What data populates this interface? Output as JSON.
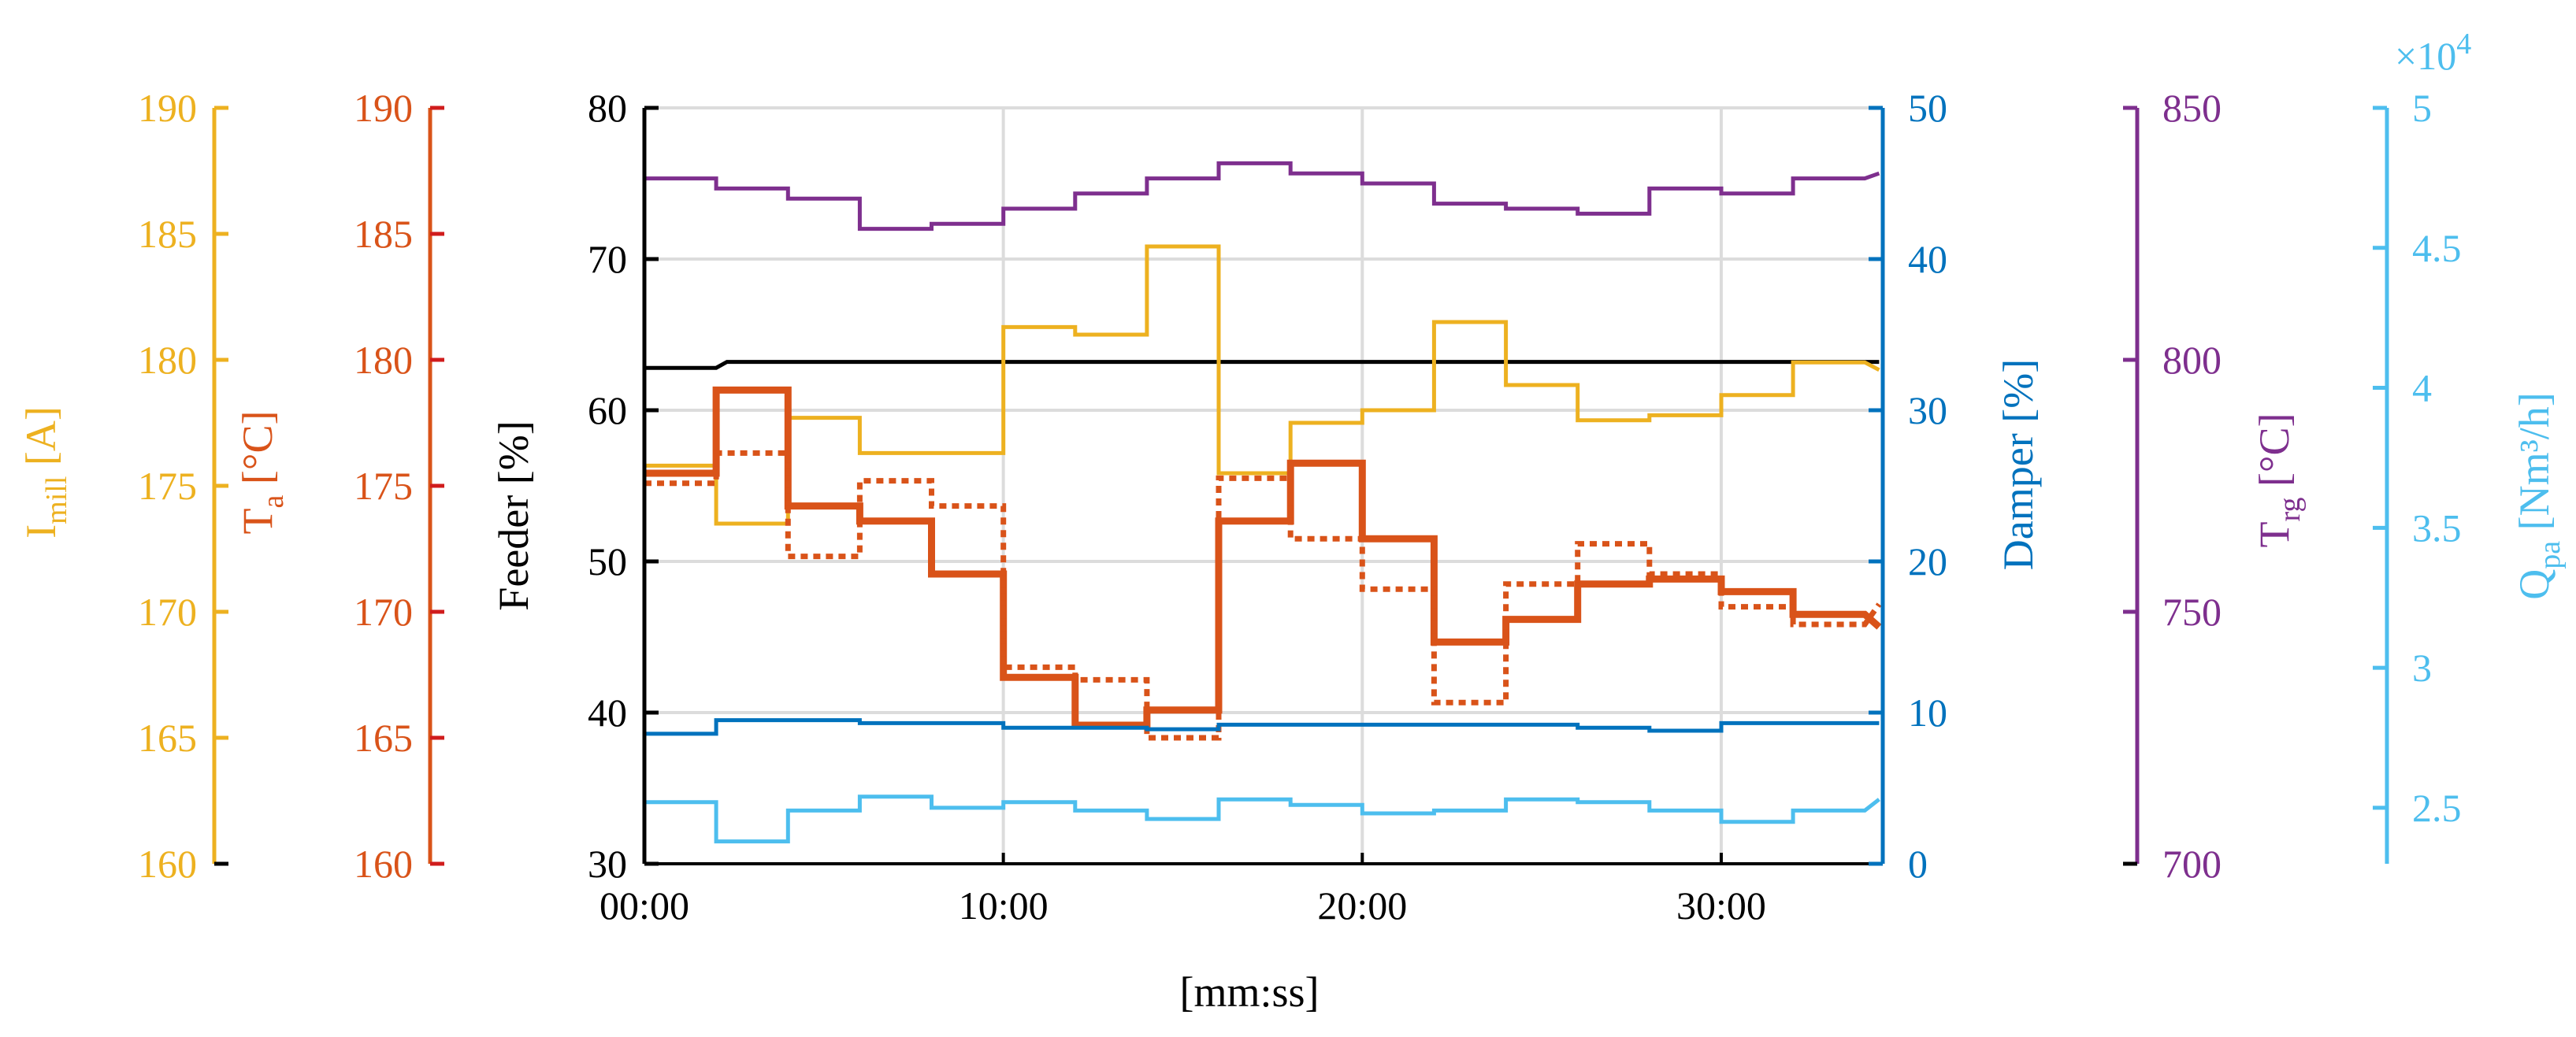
{
  "chart_data": {
    "type": "line",
    "xlabel": "[mm:ss]",
    "x_ticks": [
      "00:00",
      "10:00",
      "20:00",
      "30:00"
    ],
    "x_tick_minutes": [
      0,
      10,
      20,
      30
    ],
    "xlim_minutes": [
      0,
      34.5
    ],
    "grid": true,
    "axes": {
      "feeder": {
        "label": "Feeder [%]",
        "ylim": [
          30,
          80
        ],
        "ticks": [
          30,
          40,
          50,
          60,
          70,
          80
        ],
        "color": "#000000"
      },
      "damper": {
        "label": "Damper [%]",
        "ylim": [
          0,
          50
        ],
        "ticks": [
          0,
          10,
          20,
          30,
          40,
          50
        ],
        "color": "#0072BD"
      },
      "imill": {
        "label_main": "I",
        "label_sub": "mill",
        "label_unit": " [A]",
        "ylim": [
          160,
          190
        ],
        "ticks": [
          160,
          165,
          170,
          175,
          180,
          185,
          190
        ],
        "color": "#EDB120"
      },
      "ta": {
        "label_main": "T",
        "label_sub": "a",
        "label_unit": " [°C]",
        "ylim": [
          160,
          190
        ],
        "ticks": [
          160,
          165,
          170,
          175,
          180,
          185,
          190
        ],
        "color": "#D95319",
        "tick_color": "#D01C1C"
      },
      "trg": {
        "label_main": "T",
        "label_sub": "rg",
        "label_unit": " [°C]",
        "ylim": [
          700,
          850
        ],
        "ticks": [
          700,
          750,
          800,
          850
        ],
        "color": "#7E2F8E"
      },
      "qpa": {
        "label_main": "Q",
        "label_sub": "pa",
        "label_unit": " [Nm³/h]",
        "ylim": [
          2.3,
          5
        ],
        "ticks": [
          2.5,
          3,
          3.5,
          4,
          4.5,
          5
        ],
        "exponent_prefix": "×10",
        "exponent_power": "4",
        "color": "#4DBEEE"
      }
    },
    "series": [
      {
        "axis": "trg",
        "color": "#7E2F8E",
        "style": "solid",
        "width": 5,
        "points": [
          [
            0,
            836
          ],
          [
            2,
            836
          ],
          [
            2,
            834
          ],
          [
            4,
            834
          ],
          [
            4,
            832
          ],
          [
            6,
            832
          ],
          [
            6,
            826
          ],
          [
            8,
            826
          ],
          [
            8,
            827
          ],
          [
            10,
            827
          ],
          [
            10,
            830
          ],
          [
            12,
            830
          ],
          [
            12,
            833
          ],
          [
            14,
            833
          ],
          [
            14,
            836
          ],
          [
            16,
            836
          ],
          [
            16,
            839
          ],
          [
            18,
            839
          ],
          [
            18,
            837
          ],
          [
            20,
            837
          ],
          [
            20,
            835
          ],
          [
            22,
            835
          ],
          [
            22,
            831
          ],
          [
            24,
            831
          ],
          [
            24,
            830
          ],
          [
            26,
            830
          ],
          [
            26,
            829
          ],
          [
            28,
            829
          ],
          [
            28,
            834
          ],
          [
            30,
            834
          ],
          [
            30,
            833
          ],
          [
            32,
            833
          ],
          [
            32,
            836
          ],
          [
            34,
            836
          ],
          [
            34.4,
            837
          ]
        ]
      },
      {
        "axis": "feeder",
        "color": "#000000",
        "style": "solid",
        "width": 5,
        "points": [
          [
            0,
            62.8
          ],
          [
            2,
            62.8
          ],
          [
            2.3,
            63.2
          ],
          [
            34.4,
            63.2
          ]
        ]
      },
      {
        "axis": "imill",
        "color": "#EDB120",
        "style": "solid",
        "width": 5,
        "points": [
          [
            0,
            175.8
          ],
          [
            2,
            175.8
          ],
          [
            2,
            173.5
          ],
          [
            4,
            173.5
          ],
          [
            4,
            177.7
          ],
          [
            6,
            177.7
          ],
          [
            6,
            176.3
          ],
          [
            10,
            176.3
          ],
          [
            10,
            181.3
          ],
          [
            12,
            181.3
          ],
          [
            12,
            181
          ],
          [
            14,
            181
          ],
          [
            14,
            184.5
          ],
          [
            16,
            184.5
          ],
          [
            16,
            175.5
          ],
          [
            18,
            175.5
          ],
          [
            18,
            177.5
          ],
          [
            20,
            177.5
          ],
          [
            20,
            178
          ],
          [
            22,
            178
          ],
          [
            22,
            181.5
          ],
          [
            24,
            181.5
          ],
          [
            24,
            179
          ],
          [
            26,
            179
          ],
          [
            26,
            177.6
          ],
          [
            28,
            177.6
          ],
          [
            28,
            177.8
          ],
          [
            30,
            177.8
          ],
          [
            30,
            178.6
          ],
          [
            32,
            178.6
          ],
          [
            32,
            179.9
          ],
          [
            34,
            179.9
          ],
          [
            34.4,
            179.6
          ]
        ]
      },
      {
        "axis": "ta",
        "color": "#D95319",
        "style": "solid",
        "width": 9,
        "points": [
          [
            0,
            175.5
          ],
          [
            2,
            175.5
          ],
          [
            2,
            178.8
          ],
          [
            4,
            178.8
          ],
          [
            4,
            174.2
          ],
          [
            6,
            174.2
          ],
          [
            6,
            173.6
          ],
          [
            8,
            173.6
          ],
          [
            8,
            171.5
          ],
          [
            10,
            171.5
          ],
          [
            10,
            167.4
          ],
          [
            12,
            167.4
          ],
          [
            12,
            165.5
          ],
          [
            14,
            165.5
          ],
          [
            14,
            166.1
          ],
          [
            16,
            166.1
          ],
          [
            16,
            173.6
          ],
          [
            18,
            173.6
          ],
          [
            18,
            175.9
          ],
          [
            20,
            175.9
          ],
          [
            20,
            172.9
          ],
          [
            22,
            172.9
          ],
          [
            22,
            168.8
          ],
          [
            24,
            168.8
          ],
          [
            24,
            169.7
          ],
          [
            26,
            169.7
          ],
          [
            26,
            171.1
          ],
          [
            28,
            171.1
          ],
          [
            28,
            171.3
          ],
          [
            30,
            171.3
          ],
          [
            30,
            170.8
          ],
          [
            32,
            170.8
          ],
          [
            32,
            169.9
          ],
          [
            34,
            169.9
          ],
          [
            34.4,
            169.4
          ]
        ]
      },
      {
        "axis": "ta",
        "color": "#D95319",
        "style": "dotted",
        "width": 7,
        "points": [
          [
            0,
            175.1
          ],
          [
            2,
            175.1
          ],
          [
            2,
            176.3
          ],
          [
            4,
            176.3
          ],
          [
            4,
            172.2
          ],
          [
            6,
            172.2
          ],
          [
            6,
            175.2
          ],
          [
            8,
            175.2
          ],
          [
            8,
            174.2
          ],
          [
            10,
            174.2
          ],
          [
            10,
            167.8
          ],
          [
            12,
            167.8
          ],
          [
            12,
            167.3
          ],
          [
            14,
            167.3
          ],
          [
            14,
            165
          ],
          [
            16,
            165
          ],
          [
            16,
            175.3
          ],
          [
            18,
            175.3
          ],
          [
            18,
            172.9
          ],
          [
            20,
            172.9
          ],
          [
            20,
            170.9
          ],
          [
            22,
            170.9
          ],
          [
            22,
            166.4
          ],
          [
            24,
            166.4
          ],
          [
            24,
            171.1
          ],
          [
            26,
            171.1
          ],
          [
            26,
            172.7
          ],
          [
            28,
            172.7
          ],
          [
            28,
            171.5
          ],
          [
            30,
            171.5
          ],
          [
            30,
            170.2
          ],
          [
            32,
            170.2
          ],
          [
            32,
            169.5
          ],
          [
            34,
            169.5
          ],
          [
            34.4,
            170.3
          ]
        ]
      },
      {
        "axis": "damper",
        "color": "#0072BD",
        "style": "solid",
        "width": 5,
        "points": [
          [
            0,
            8.6
          ],
          [
            2,
            8.6
          ],
          [
            2,
            9.5
          ],
          [
            6,
            9.5
          ],
          [
            6,
            9.3
          ],
          [
            10,
            9.3
          ],
          [
            10,
            9
          ],
          [
            14,
            9
          ],
          [
            14,
            8.9
          ],
          [
            16,
            8.9
          ],
          [
            16,
            9.2
          ],
          [
            26,
            9.2
          ],
          [
            26,
            9
          ],
          [
            28,
            9
          ],
          [
            28,
            8.8
          ],
          [
            30,
            8.8
          ],
          [
            30,
            9.3
          ],
          [
            34.4,
            9.3
          ]
        ]
      },
      {
        "axis": "qpa",
        "color": "#4DBEEE",
        "style": "solid",
        "width": 5,
        "points": [
          [
            0,
            2.52
          ],
          [
            2,
            2.52
          ],
          [
            2,
            2.38
          ],
          [
            4,
            2.38
          ],
          [
            4,
            2.49
          ],
          [
            6,
            2.49
          ],
          [
            6,
            2.54
          ],
          [
            8,
            2.54
          ],
          [
            8,
            2.5
          ],
          [
            10,
            2.5
          ],
          [
            10,
            2.52
          ],
          [
            12,
            2.52
          ],
          [
            12,
            2.49
          ],
          [
            14,
            2.49
          ],
          [
            14,
            2.46
          ],
          [
            16,
            2.46
          ],
          [
            16,
            2.53
          ],
          [
            18,
            2.53
          ],
          [
            18,
            2.51
          ],
          [
            20,
            2.51
          ],
          [
            20,
            2.48
          ],
          [
            22,
            2.48
          ],
          [
            22,
            2.49
          ],
          [
            24,
            2.49
          ],
          [
            24,
            2.53
          ],
          [
            26,
            2.53
          ],
          [
            26,
            2.52
          ],
          [
            28,
            2.52
          ],
          [
            28,
            2.49
          ],
          [
            30,
            2.49
          ],
          [
            30,
            2.45
          ],
          [
            32,
            2.45
          ],
          [
            32,
            2.49
          ],
          [
            34,
            2.49
          ],
          [
            34.4,
            2.53
          ]
        ]
      }
    ]
  }
}
